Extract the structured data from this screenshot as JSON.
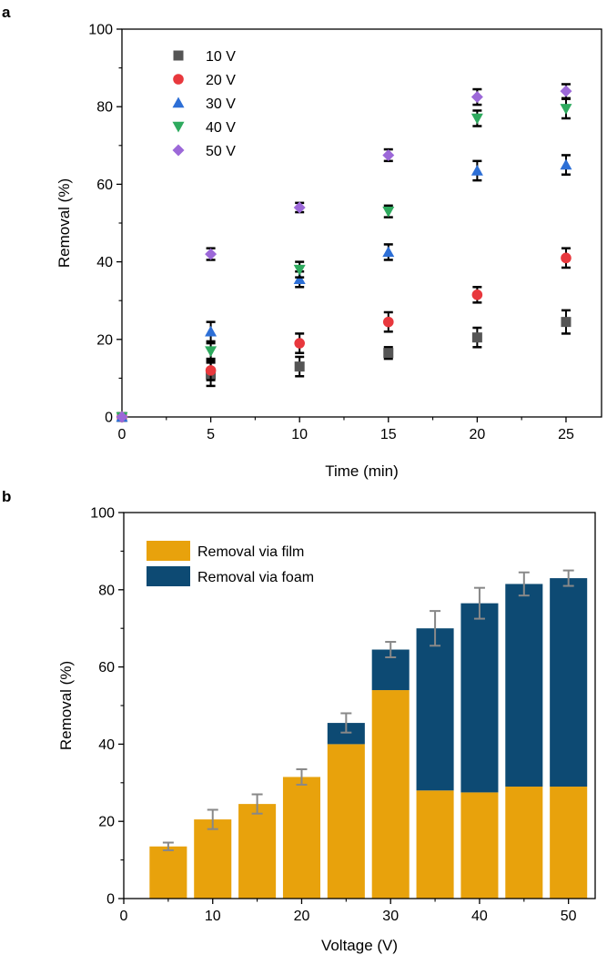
{
  "chart_data": [
    {
      "panel": "a",
      "type": "scatter",
      "xlabel": "Time (min)",
      "ylabel": "Removal (%)",
      "xlim": [
        0,
        27
      ],
      "ylim": [
        0,
        100
      ],
      "xticks": [
        0,
        5,
        10,
        15,
        20,
        25
      ],
      "yticks": [
        0,
        20,
        40,
        60,
        80,
        100
      ],
      "legend_position": "top-left",
      "series": [
        {
          "name": "10 V",
          "marker": "square",
          "color": "#555555",
          "x": [
            0,
            5,
            10,
            15,
            20,
            25
          ],
          "y": [
            0,
            11,
            13,
            16.5,
            20.5,
            24.5
          ],
          "err": [
            0,
            3,
            2.5,
            1.5,
            2.5,
            3
          ]
        },
        {
          "name": "20 V",
          "marker": "circle",
          "color": "#e8383d",
          "x": [
            0,
            5,
            10,
            15,
            20,
            25
          ],
          "y": [
            0,
            12,
            19,
            24.5,
            31.5,
            41
          ],
          "err": [
            0,
            2.5,
            2.5,
            2.5,
            2,
            2.5
          ]
        },
        {
          "name": "30 V",
          "marker": "triangle-up",
          "color": "#2d6fd6",
          "x": [
            0,
            5,
            10,
            15,
            20,
            25
          ],
          "y": [
            0,
            22,
            35.5,
            42.5,
            63.5,
            65
          ],
          "err": [
            0,
            2.5,
            2,
            2,
            2.5,
            2.5
          ]
        },
        {
          "name": "40 V",
          "marker": "triangle-down",
          "color": "#2eaa5e",
          "x": [
            0,
            5,
            10,
            15,
            20,
            25
          ],
          "y": [
            0,
            17,
            38,
            53,
            77,
            79.5
          ],
          "err": [
            0,
            2,
            2,
            1.5,
            2,
            2.5
          ]
        },
        {
          "name": "50 V",
          "marker": "diamond",
          "color": "#9c68d8",
          "x": [
            0,
            5,
            10,
            15,
            20,
            25
          ],
          "y": [
            0,
            42,
            54,
            67.5,
            82.5,
            84
          ],
          "err": [
            0,
            1.5,
            1.2,
            1.5,
            2,
            1.8
          ]
        }
      ]
    },
    {
      "panel": "b",
      "type": "bar",
      "stacked": true,
      "xlabel": "Voltage (V)",
      "ylabel": "Removal (%)",
      "xlim": [
        0,
        53
      ],
      "ylim": [
        0,
        100
      ],
      "xticks": [
        0,
        10,
        20,
        30,
        40,
        50
      ],
      "yticks": [
        0,
        20,
        40,
        60,
        80,
        100
      ],
      "legend_position": "top-left",
      "x": [
        5,
        10,
        15,
        20,
        25,
        30,
        35,
        40,
        45,
        50
      ],
      "series": [
        {
          "name": "Removal via film",
          "color": "#e8a20c",
          "values": [
            13.5,
            20.5,
            24.5,
            31.5,
            40,
            54,
            28,
            27.5,
            29,
            29
          ]
        },
        {
          "name": "Removal via foam",
          "color": "#0d4a73",
          "values": [
            0,
            0,
            0,
            0,
            5.5,
            10.5,
            42,
            49,
            52.5,
            54
          ]
        }
      ],
      "totals": [
        13.5,
        20.5,
        24.5,
        31.5,
        45.5,
        64.5,
        70,
        76.5,
        81.5,
        83
      ],
      "err": [
        1,
        2.5,
        2.5,
        2,
        2.5,
        2,
        4.5,
        4,
        3,
        2
      ]
    }
  ]
}
